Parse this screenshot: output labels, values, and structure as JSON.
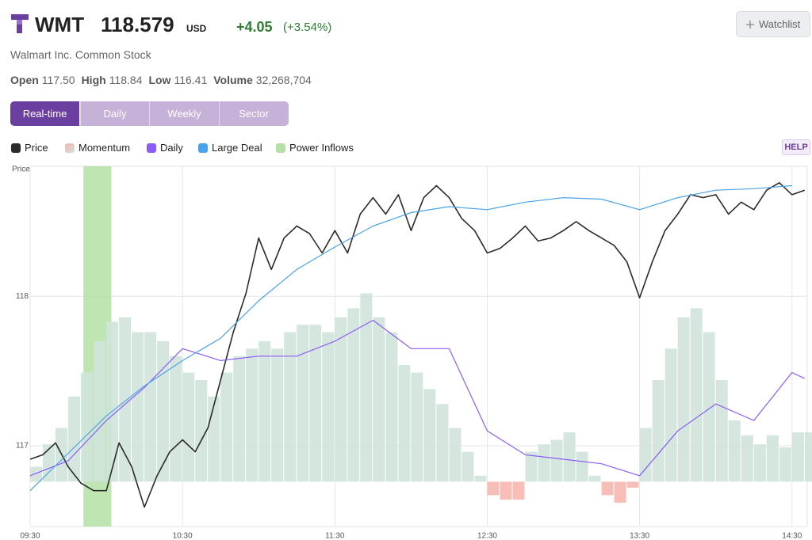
{
  "header": {
    "ticker": "WMT",
    "price": "118.579",
    "currency": "USD",
    "change": "+4.05",
    "change_pct": "(+3.54%)",
    "company": "Walmart Inc. Common Stock",
    "watchlist": "Watchlist",
    "help": "HELP",
    "stats": [
      {
        "label": "Open",
        "value": "117.50"
      },
      {
        "label": "High",
        "value": "118.84"
      },
      {
        "label": "Low",
        "value": "116.41"
      },
      {
        "label": "Volume",
        "value": "32,268,704"
      }
    ]
  },
  "tabs": {
    "items": [
      "Real-time",
      "Daily",
      "Weekly",
      "Sector"
    ],
    "active": 0
  },
  "chart_data": {
    "type": "line",
    "y_label": "Price",
    "xlim": [
      570,
      876
    ],
    "xticks": [
      {
        "value": 570,
        "label": "09:30"
      },
      {
        "value": 630,
        "label": "10:30"
      },
      {
        "value": 690,
        "label": "11:30"
      },
      {
        "value": 750,
        "label": "12:30"
      },
      {
        "value": 810,
        "label": "13:30"
      },
      {
        "value": 870,
        "label": "14:30"
      }
    ],
    "ylim": [
      116.46,
      118.87
    ],
    "yticks": [
      117,
      118
    ],
    "grid": true,
    "x": [
      570,
      575,
      580,
      585,
      590,
      595,
      600,
      605,
      610,
      615,
      620,
      625,
      630,
      635,
      640,
      645,
      650,
      655,
      660,
      665,
      670,
      675,
      680,
      685,
      690,
      695,
      700,
      705,
      710,
      715,
      720,
      725,
      730,
      735,
      740,
      745,
      750,
      755,
      760,
      765,
      770,
      775,
      780,
      785,
      790,
      795,
      800,
      805,
      810,
      815,
      820,
      825,
      830,
      835,
      840,
      845,
      850,
      855,
      860,
      865,
      870,
      875
    ],
    "series": [
      {
        "name": "Price",
        "type": "line",
        "color": "#2b2b2b",
        "values": [
          116.91,
          116.94,
          117.02,
          116.86,
          116.75,
          116.7,
          116.7,
          117.02,
          116.86,
          116.59,
          116.8,
          116.96,
          117.04,
          116.96,
          117.12,
          117.44,
          117.76,
          118.02,
          118.39,
          118.18,
          118.39,
          118.47,
          118.42,
          118.29,
          118.44,
          118.29,
          118.55,
          118.66,
          118.55,
          118.68,
          118.44,
          118.66,
          118.74,
          118.66,
          118.52,
          118.44,
          118.29,
          118.32,
          118.39,
          118.47,
          118.37,
          118.39,
          118.44,
          118.5,
          118.44,
          118.39,
          118.34,
          118.23,
          117.99,
          118.23,
          118.44,
          118.55,
          118.68,
          118.66,
          118.68,
          118.55,
          118.63,
          118.58,
          118.71,
          118.76,
          118.68,
          118.71
        ]
      },
      {
        "name": "Momentum",
        "type": "bar",
        "color": "#cfe3da",
        "negative_color": "#f5b7ae",
        "base": 116.76,
        "values": [
          0.1,
          0.25,
          0.36,
          0.57,
          0.73,
          0.94,
          1.07,
          1.1,
          1.0,
          1.0,
          0.94,
          0.84,
          0.73,
          0.68,
          0.57,
          0.73,
          0.84,
          0.89,
          0.94,
          0.89,
          1.0,
          1.05,
          1.05,
          1.0,
          1.1,
          1.16,
          1.26,
          1.1,
          1.0,
          0.78,
          0.73,
          0.62,
          0.52,
          0.36,
          0.2,
          0.04,
          -0.09,
          -0.12,
          -0.12,
          0.2,
          0.25,
          0.28,
          0.33,
          0.2,
          0.04,
          -0.09,
          -0.14,
          -0.04,
          0.36,
          0.68,
          0.89,
          1.1,
          1.16,
          1.0,
          0.68,
          0.41,
          0.31,
          0.25,
          0.31,
          0.23,
          0.33,
          0.33
        ]
      },
      {
        "name": "Daily",
        "type": "line",
        "color": "#8b5cf6",
        "x": [
          570,
          585,
          600,
          615,
          630,
          645,
          660,
          675,
          690,
          705,
          720,
          735,
          750,
          765,
          780,
          795,
          810,
          825,
          840,
          855,
          870,
          875
        ],
        "values": [
          116.8,
          116.9,
          117.17,
          117.39,
          117.65,
          117.57,
          117.6,
          117.6,
          117.7,
          117.84,
          117.65,
          117.65,
          117.1,
          116.94,
          116.91,
          116.88,
          116.8,
          117.1,
          117.28,
          117.17,
          117.49,
          117.45
        ]
      },
      {
        "name": "Large Deal",
        "type": "line",
        "color": "#4aa3e6",
        "x": [
          570,
          585,
          600,
          615,
          630,
          645,
          660,
          675,
          690,
          705,
          720,
          735,
          750,
          765,
          780,
          795,
          810,
          825,
          840,
          855,
          870
        ],
        "values": [
          116.7,
          116.95,
          117.2,
          117.4,
          117.57,
          117.72,
          117.97,
          118.18,
          118.33,
          118.47,
          118.56,
          118.6,
          118.58,
          118.63,
          118.66,
          118.65,
          118.58,
          118.66,
          118.71,
          118.72,
          118.74
        ]
      },
      {
        "name": "Power Inflows",
        "type": "band",
        "color": "#b4e0a6",
        "range": [
          591,
          602
        ]
      }
    ]
  }
}
